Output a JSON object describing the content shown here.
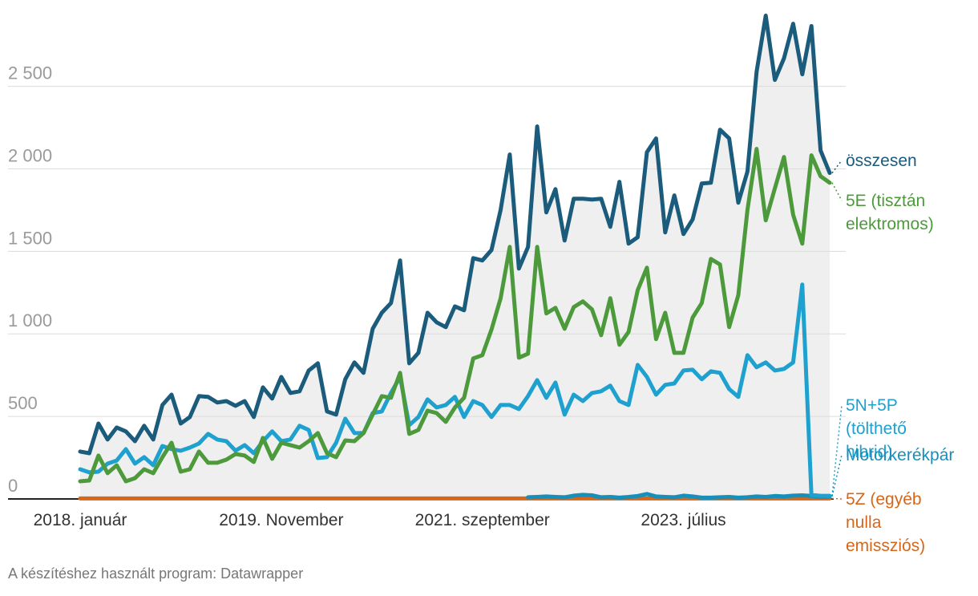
{
  "chart_data": {
    "type": "line",
    "footer": "A készítéshez használt program: Datawrapper",
    "categories": [
      "2018. január",
      null,
      null,
      null,
      null,
      null,
      null,
      null,
      null,
      null,
      null,
      null,
      null,
      null,
      null,
      null,
      null,
      null,
      null,
      null,
      null,
      null,
      "2019. November",
      null,
      null,
      null,
      null,
      null,
      null,
      null,
      null,
      null,
      null,
      null,
      null,
      null,
      null,
      null,
      null,
      null,
      null,
      null,
      null,
      null,
      "2021. szeptember",
      null,
      null,
      null,
      null,
      null,
      null,
      null,
      null,
      null,
      null,
      null,
      null,
      null,
      null,
      null,
      null,
      null,
      null,
      null,
      null,
      null,
      "2023. július",
      null,
      null,
      null,
      null,
      null,
      null,
      null,
      null,
      null,
      null,
      null,
      null,
      null,
      null,
      null,
      null
    ],
    "ylim": [
      0,
      2950
    ],
    "yticks": [
      0,
      500,
      {
        "value": 1000,
        "label": "1 000"
      },
      {
        "value": 1500,
        "label": "1 500"
      },
      {
        "value": 2000,
        "label": "2 000"
      },
      {
        "value": 2500,
        "label": "2 500"
      }
    ],
    "grid": true,
    "area_under_first_series": true,
    "series": [
      {
        "name": "összesen",
        "color": "#1b5b7b",
        "values": [
          287,
          277,
          457,
          360,
          433,
          409,
          350,
          443,
          360,
          569,
          632,
          457,
          496,
          623,
          618,
          584,
          593,
          564,
          593,
          496,
          676,
          608,
          739,
          642,
          652,
          778,
          822,
          530,
          511,
          725,
          827,
          764,
          1031,
          1128,
          1187,
          1445,
          822,
          885,
          1128,
          1070,
          1041,
          1167,
          1143,
          1459,
          1445,
          1508,
          1751,
          2087,
          1396,
          1527,
          2257,
          1736,
          1877,
          1566,
          1819,
          1819,
          1814,
          1819,
          1649,
          1921,
          1547,
          1586,
          2101,
          2184,
          1615,
          1839,
          1605,
          1693,
          1911,
          1916,
          2237,
          2184,
          1795,
          1984,
          2588,
          2928,
          2539,
          2670,
          2879,
          2573,
          2865,
          2111,
          1975
        ]
      },
      {
        "name": "5E (tisztán elektromos)",
        "color": "#4d9a3c",
        "values": [
          107,
          112,
          263,
          156,
          204,
          107,
          126,
          180,
          156,
          253,
          340,
          165,
          180,
          287,
          219,
          219,
          238,
          272,
          263,
          224,
          370,
          243,
          340,
          326,
          311,
          350,
          399,
          277,
          253,
          355,
          350,
          399,
          511,
          623,
          613,
          764,
          394,
          418,
          535,
          520,
          467,
          554,
          613,
          851,
          871,
          1026,
          1216,
          1527,
          856,
          880,
          1527,
          1124,
          1158,
          1031,
          1162,
          1197,
          1148,
          992,
          1216,
          934,
          1012,
          1265,
          1401,
          968,
          1128,
          885,
          885,
          1099,
          1187,
          1454,
          1420,
          1041,
          1235,
          1751,
          2121,
          1688,
          1882,
          2072,
          1722,
          1547,
          2082,
          1955,
          1916
        ]
      },
      {
        "name": "5N+5P (tölthető hibrid)",
        "color": "#1ea1cf",
        "values": [
          180,
          161,
          165,
          214,
          233,
          302,
          214,
          253,
          204,
          321,
          302,
          292,
          311,
          336,
          394,
          360,
          350,
          292,
          326,
          277,
          350,
          409,
          350,
          360,
          443,
          418,
          248,
          253,
          340,
          486,
          399,
          399,
          520,
          530,
          642,
          739,
          447,
          496,
          603,
          554,
          569,
          618,
          496,
          593,
          569,
          496,
          569,
          569,
          545,
          623,
          720,
          613,
          705,
          511,
          632,
          593,
          642,
          652,
          686,
          593,
          569,
          812,
          739,
          632,
          691,
          700,
          778,
          783,
          725,
          773,
          764,
          666,
          618,
          871,
          798,
          827,
          778,
          788,
          827,
          1299,
          24,
          19,
          19
        ]
      },
      {
        "name": "Motorkerékpár",
        "color": "#168fbb",
        "values": [
          null,
          null,
          null,
          null,
          null,
          null,
          null,
          null,
          null,
          null,
          null,
          null,
          null,
          null,
          null,
          null,
          null,
          null,
          null,
          null,
          null,
          null,
          null,
          null,
          null,
          null,
          null,
          null,
          null,
          null,
          null,
          null,
          null,
          null,
          null,
          null,
          null,
          null,
          null,
          null,
          null,
          null,
          null,
          null,
          null,
          null,
          null,
          null,
          null,
          10,
          12,
          15,
          12,
          10,
          20,
          25,
          22,
          10,
          12,
          8,
          12,
          18,
          30,
          15,
          12,
          10,
          20,
          15,
          8,
          8,
          10,
          12,
          8,
          10,
          15,
          12,
          18,
          15,
          20,
          22,
          18,
          12,
          15
        ]
      },
      {
        "name": "5Z (egyéb nulla emissziós)",
        "color": "#d4671a",
        "values": [
          3,
          3,
          3,
          3,
          3,
          3,
          3,
          3,
          3,
          3,
          3,
          3,
          3,
          3,
          3,
          3,
          3,
          3,
          3,
          3,
          3,
          3,
          3,
          3,
          3,
          3,
          3,
          3,
          3,
          3,
          3,
          3,
          3,
          3,
          3,
          3,
          3,
          3,
          3,
          3,
          3,
          3,
          3,
          3,
          3,
          3,
          3,
          3,
          3,
          3,
          3,
          3,
          3,
          3,
          3,
          3,
          3,
          3,
          3,
          3,
          3,
          3,
          3,
          3,
          3,
          3,
          3,
          3,
          3,
          3,
          3,
          3,
          3,
          3,
          3,
          3,
          3,
          3,
          3,
          3,
          3,
          3,
          3
        ]
      }
    ]
  }
}
